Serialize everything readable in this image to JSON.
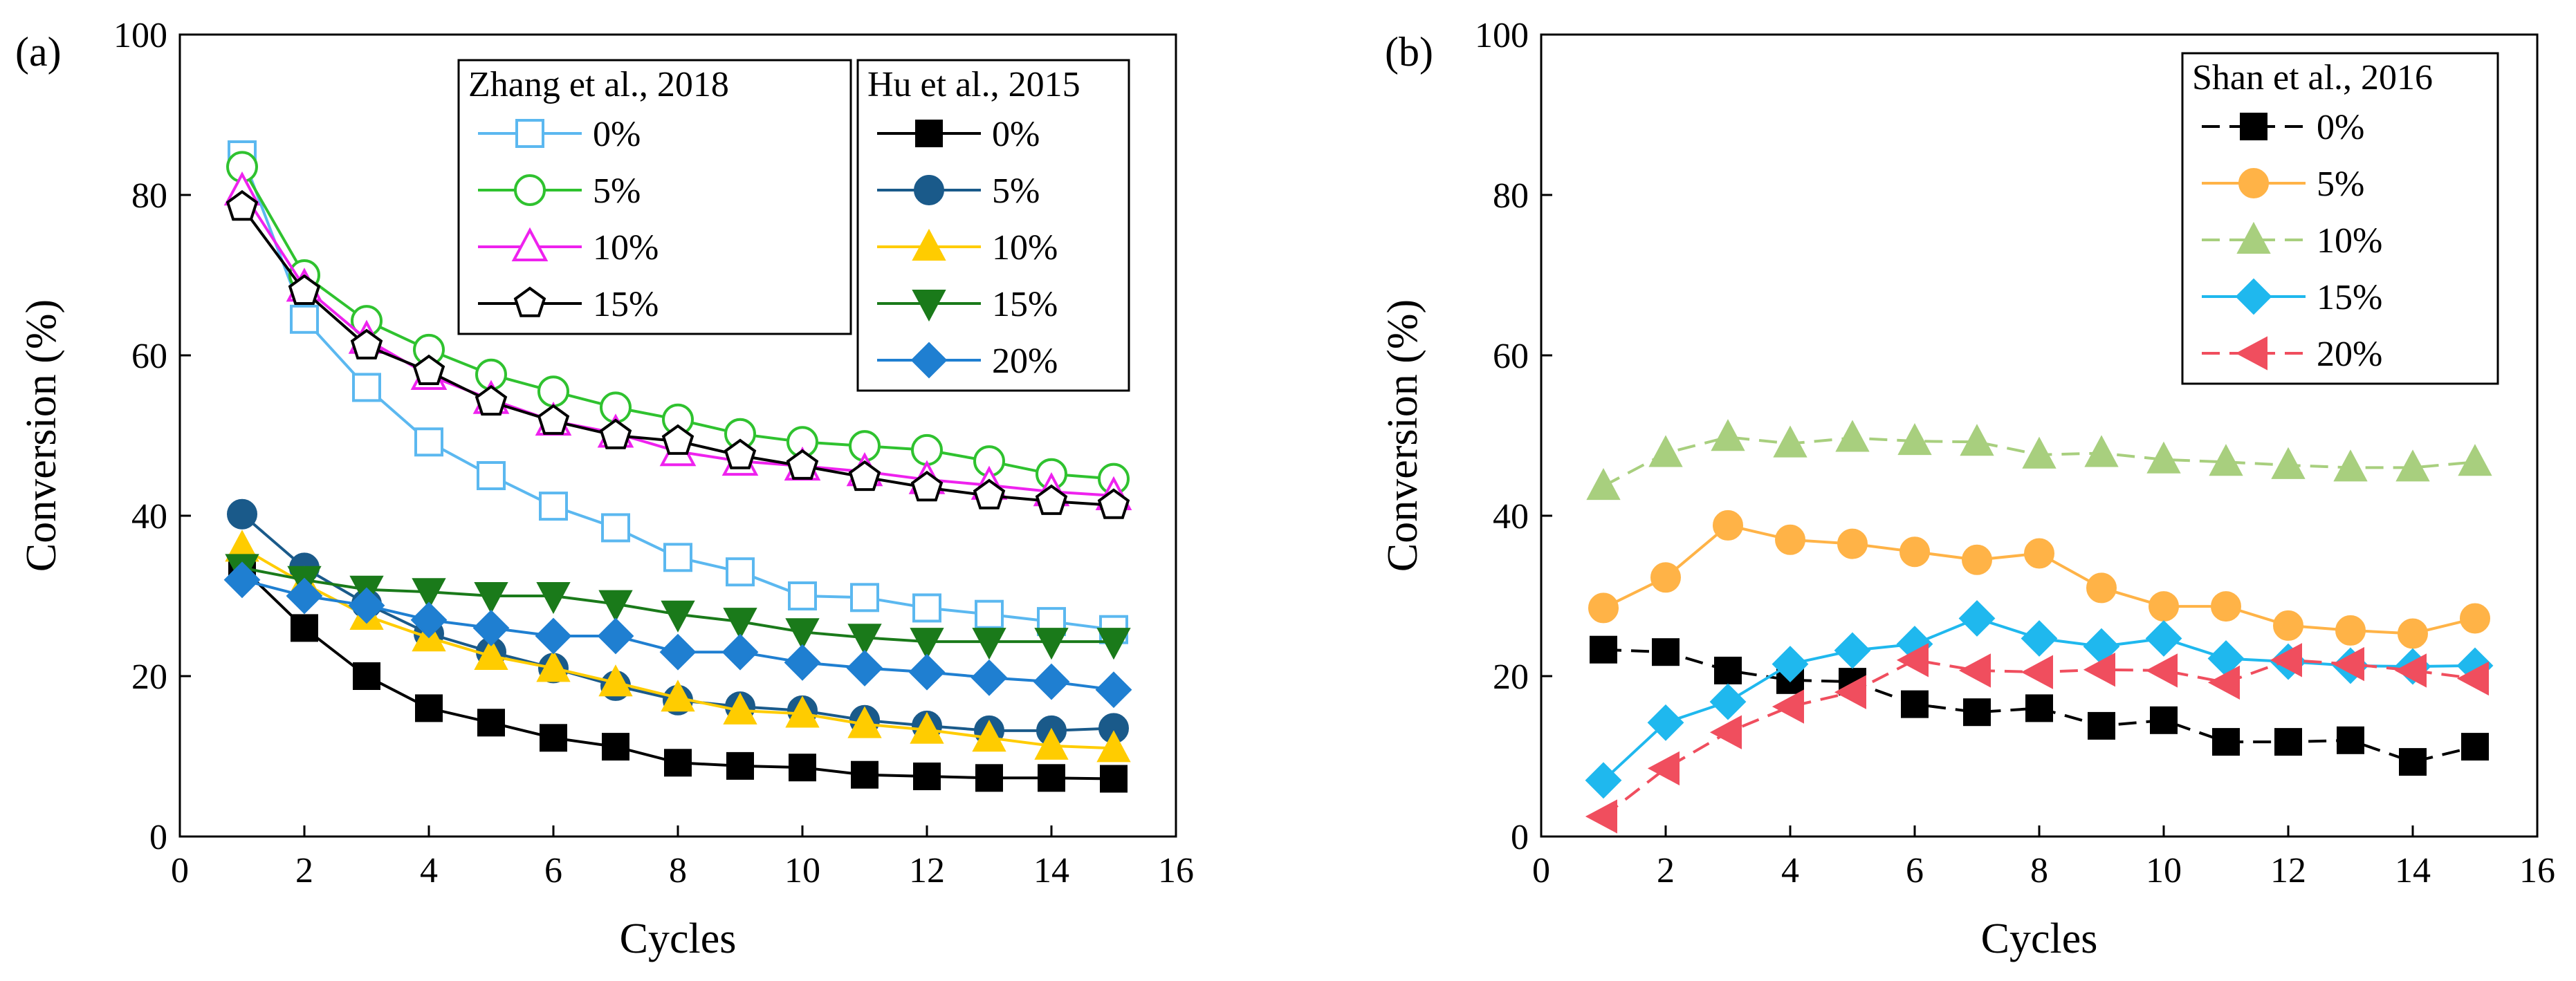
{
  "chart_data": [
    {
      "type": "line",
      "panel_label": "(a)",
      "xlabel": "Cycles",
      "ylabel": "Conversion (%)",
      "xlim": [
        0,
        16
      ],
      "ylim": [
        0,
        100
      ],
      "xticks": [
        0,
        2,
        4,
        6,
        8,
        10,
        12,
        14,
        16
      ],
      "yticks": [
        0,
        20,
        40,
        60,
        80,
        100
      ],
      "grid": false,
      "x": [
        1,
        2,
        3,
        4,
        5,
        6,
        7,
        8,
        9,
        10,
        11,
        12,
        13,
        14,
        15
      ],
      "legends": [
        {
          "title": "Zhang et al., 2018",
          "placement": "top-center",
          "series": [
            {
              "name": "0%",
              "color": "#5bb8f0",
              "marker": "square-open",
              "values": [
                85,
                64.5,
                56,
                49.2,
                45,
                41.2,
                38.5,
                34.8,
                33,
                30,
                29.8,
                28.5,
                27.7,
                26.8,
                25.8
              ]
            },
            {
              "name": "5%",
              "color": "#2fc22f",
              "marker": "circle-open",
              "values": [
                83.5,
                70,
                64.3,
                60.7,
                57.6,
                55.5,
                53.5,
                52,
                50.2,
                49.2,
                48.7,
                48.2,
                46.8,
                45.2,
                44.6
              ]
            },
            {
              "name": "10%",
              "color": "#ee22ee",
              "marker": "triangle-open",
              "values": [
                80.5,
                68.5,
                62,
                57.5,
                54.5,
                51.8,
                50.3,
                48,
                46.8,
                46.2,
                45.5,
                44.5,
                43.8,
                43,
                42.5
              ]
            },
            {
              "name": "15%",
              "color": "#000000",
              "marker": "pentagon-open",
              "values": [
                78.5,
                68,
                61.2,
                58,
                54.2,
                51.8,
                50,
                49.3,
                47.5,
                46.2,
                44.8,
                43.5,
                42.5,
                41.8,
                41.3
              ]
            }
          ]
        },
        {
          "title": "Hu et al., 2015",
          "placement": "top-right",
          "series": [
            {
              "name": "0%",
              "color": "#000000",
              "marker": "square",
              "values": [
                33.5,
                26,
                20,
                16,
                14.2,
                12.3,
                11.2,
                9.2,
                8.8,
                8.6,
                7.7,
                7.5,
                7.3,
                7.3,
                7.2
              ]
            },
            {
              "name": "5%",
              "color": "#1a5a8a",
              "marker": "circle",
              "values": [
                40.2,
                33.5,
                29,
                25.3,
                23,
                21,
                18.8,
                17,
                16.2,
                15.7,
                14.5,
                13.8,
                13.2,
                13.2,
                13.5
              ]
            },
            {
              "name": "10%",
              "color": "#ffcc00",
              "marker": "triangle",
              "values": [
                36,
                31.5,
                27.5,
                24.8,
                22.5,
                21,
                19.2,
                17.3,
                15.7,
                15.3,
                14,
                13.3,
                12.3,
                11.3,
                11
              ]
            },
            {
              "name": "15%",
              "color": "#1a7a1a",
              "marker": "triangle-down",
              "values": [
                33.5,
                32,
                30.8,
                30.5,
                30,
                30,
                29,
                27.7,
                26.8,
                25.5,
                24.8,
                24.3,
                24.3,
                24.3,
                24.3
              ]
            },
            {
              "name": "20%",
              "color": "#1f7fd1",
              "marker": "diamond",
              "values": [
                32,
                30,
                28.8,
                27,
                26,
                25,
                25,
                23,
                23,
                21.7,
                21,
                20.5,
                19.8,
                19.3,
                18.3
              ]
            }
          ]
        }
      ]
    },
    {
      "type": "line",
      "panel_label": "(b)",
      "xlabel": "Cycles",
      "ylabel": "Conversion (%)",
      "xlim": [
        0,
        16
      ],
      "ylim": [
        0,
        100
      ],
      "xticks": [
        0,
        2,
        4,
        6,
        8,
        10,
        12,
        14,
        16
      ],
      "yticks": [
        0,
        20,
        40,
        60,
        80,
        100
      ],
      "grid": false,
      "x": [
        1,
        2,
        3,
        4,
        5,
        6,
        7,
        8,
        9,
        10,
        11,
        12,
        13,
        14,
        15
      ],
      "legends": [
        {
          "title": "Shan et al., 2016",
          "placement": "top-right",
          "series": [
            {
              "name": "0%",
              "color": "#000000",
              "marker": "square",
              "dash": true,
              "values": [
                23.3,
                23,
                20.7,
                19.5,
                19.3,
                16.5,
                15.5,
                16,
                13.8,
                14.5,
                11.8,
                11.8,
                12,
                9.3,
                11.2
              ]
            },
            {
              "name": "5%",
              "color": "#ffb347",
              "marker": "circle",
              "dash": false,
              "values": [
                28.5,
                32.3,
                38.8,
                37,
                36.5,
                35.5,
                34.5,
                35.3,
                31,
                28.7,
                28.7,
                26.3,
                25.7,
                25.3,
                27.2
              ]
            },
            {
              "name": "10%",
              "color": "#a8cf7e",
              "marker": "triangle",
              "dash": true,
              "values": [
                43.7,
                47.8,
                49.8,
                49,
                49.7,
                49.3,
                49.2,
                47.6,
                47.8,
                47,
                46.7,
                46.3,
                46,
                46,
                46.7
              ]
            },
            {
              "name": "15%",
              "color": "#1fb8ee",
              "marker": "diamond",
              "dash": false,
              "values": [
                7,
                14.2,
                16.8,
                21.5,
                23.2,
                24,
                27.2,
                24.7,
                23.7,
                24.7,
                22.2,
                21.8,
                21.3,
                21.2,
                21.3
              ]
            },
            {
              "name": "20%",
              "color": "#f04e5e",
              "marker": "triangle-left",
              "dash": true,
              "values": [
                2.5,
                8.5,
                13,
                16.2,
                18,
                22,
                20.7,
                20.5,
                20.8,
                20.7,
                19.2,
                22,
                21.5,
                20.7,
                19.7
              ]
            }
          ]
        }
      ]
    }
  ]
}
